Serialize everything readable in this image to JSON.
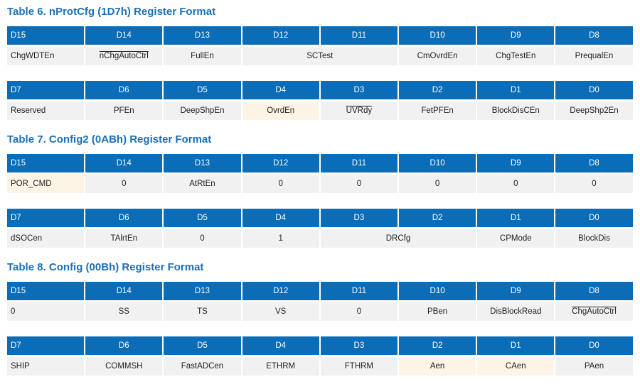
{
  "tables": [
    {
      "title": "Table 6. nProtCfg (1D7h) Register Format",
      "rows": [
        {
          "headers": [
            "D15",
            "D14",
            "D13",
            "D12",
            "D11",
            "D10",
            "D9",
            "D8"
          ],
          "cells": [
            {
              "text": "ChgWDTEn"
            },
            {
              "text": "nChgAutoCtrl",
              "overline": true
            },
            {
              "text": "FullEn"
            },
            {
              "text": "SCTest",
              "span": 2
            },
            {
              "text": "CmOvrdEn"
            },
            {
              "text": "ChgTestEn"
            },
            {
              "text": "PrequalEn"
            }
          ]
        },
        {
          "headers": [
            "D7",
            "D6",
            "D5",
            "D4",
            "D3",
            "D2",
            "D1",
            "D0"
          ],
          "cells": [
            {
              "text": "Reserved"
            },
            {
              "text": "PFEn"
            },
            {
              "text": "DeepShpEn"
            },
            {
              "text": "OvrdEn",
              "highlight": true
            },
            {
              "text": "UVRdy",
              "overline": true
            },
            {
              "text": "FetPFEn"
            },
            {
              "text": "BlockDisCEn"
            },
            {
              "text": "DeepShp2En"
            }
          ]
        }
      ]
    },
    {
      "title": "Table 7. Config2 (0ABh) Register Format",
      "rows": [
        {
          "headers": [
            "D15",
            "D14",
            "D13",
            "D12",
            "D11",
            "D10",
            "D9",
            "D8"
          ],
          "cells": [
            {
              "text": "POR_CMD",
              "highlight": true
            },
            {
              "text": "0"
            },
            {
              "text": "AtRtEn"
            },
            {
              "text": "0"
            },
            {
              "text": "0"
            },
            {
              "text": "0"
            },
            {
              "text": "0"
            },
            {
              "text": "0"
            }
          ]
        },
        {
          "headers": [
            "D7",
            "D6",
            "D5",
            "D4",
            "D3",
            "D2",
            "D1",
            "D0"
          ],
          "cells": [
            {
              "text": "dSOCen"
            },
            {
              "text": "TAlrtEn"
            },
            {
              "text": "0"
            },
            {
              "text": "1"
            },
            {
              "text": "DRCfg",
              "span": 2
            },
            {
              "text": "CPMode"
            },
            {
              "text": "BlockDis"
            }
          ]
        }
      ]
    },
    {
      "title": "Table 8. Config (00Bh) Register Format",
      "rows": [
        {
          "headers": [
            "D15",
            "D14",
            "D13",
            "D12",
            "D11",
            "D10",
            "D9",
            "D8"
          ],
          "cells": [
            {
              "text": "0"
            },
            {
              "text": "SS"
            },
            {
              "text": "TS"
            },
            {
              "text": "VS"
            },
            {
              "text": "0"
            },
            {
              "text": "PBen"
            },
            {
              "text": "DisBlockRead"
            },
            {
              "text": "ChgAutoCtrl",
              "overline": true
            }
          ]
        },
        {
          "headers": [
            "D7",
            "D6",
            "D5",
            "D4",
            "D3",
            "D2",
            "D1",
            "D0"
          ],
          "cells": [
            {
              "text": "SHIP"
            },
            {
              "text": "COMMSH"
            },
            {
              "text": "FastADCen"
            },
            {
              "text": "ETHRM"
            },
            {
              "text": "FTHRM"
            },
            {
              "text": "Aen",
              "highlight": true
            },
            {
              "text": "CAen",
              "highlight": true
            },
            {
              "text": "PAen"
            }
          ]
        }
      ]
    }
  ]
}
